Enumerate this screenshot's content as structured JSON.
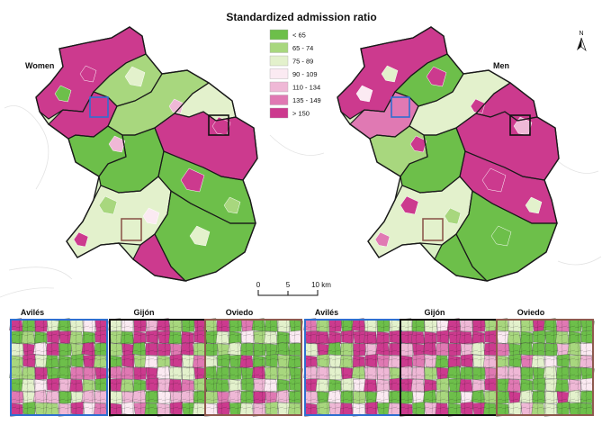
{
  "title": "Standardized admission ratio",
  "legend": {
    "placement": "top-center",
    "items": [
      {
        "label": "< 65",
        "color": "#6DBF4A"
      },
      {
        "label": "65 - 74",
        "color": "#A8D77E"
      },
      {
        "label": "75 - 89",
        "color": "#E3F1CC"
      },
      {
        "label": "90 - 109",
        "color": "#FBEAF2"
      },
      {
        "label": "110 - 134",
        "color": "#EFB8D6"
      },
      {
        "label": "135 - 149",
        "color": "#E079B3"
      },
      {
        "label": "> 150",
        "color": "#CC3A8E"
      }
    ]
  },
  "maps": {
    "women_label": "Women",
    "men_label": "Men"
  },
  "scalebar": {
    "ticks": [
      "0",
      "5",
      "10 km"
    ]
  },
  "north_arrow": {
    "label": "N",
    "icon": "north-arrow-icon"
  },
  "insets": [
    {
      "name": "Avilés",
      "group": "Women",
      "frame_color": "#2F6FD0"
    },
    {
      "name": "Gijón",
      "group": "Women",
      "frame_color": "#111111"
    },
    {
      "name": "Oviedo",
      "group": "Women",
      "frame_color": "#8E5A4E"
    },
    {
      "name": "Avilés",
      "group": "Men",
      "frame_color": "#2F6FD0"
    },
    {
      "name": "Gijón",
      "group": "Men",
      "frame_color": "#111111"
    },
    {
      "name": "Oviedo",
      "group": "Men",
      "frame_color": "#8E5A4E"
    }
  ]
}
